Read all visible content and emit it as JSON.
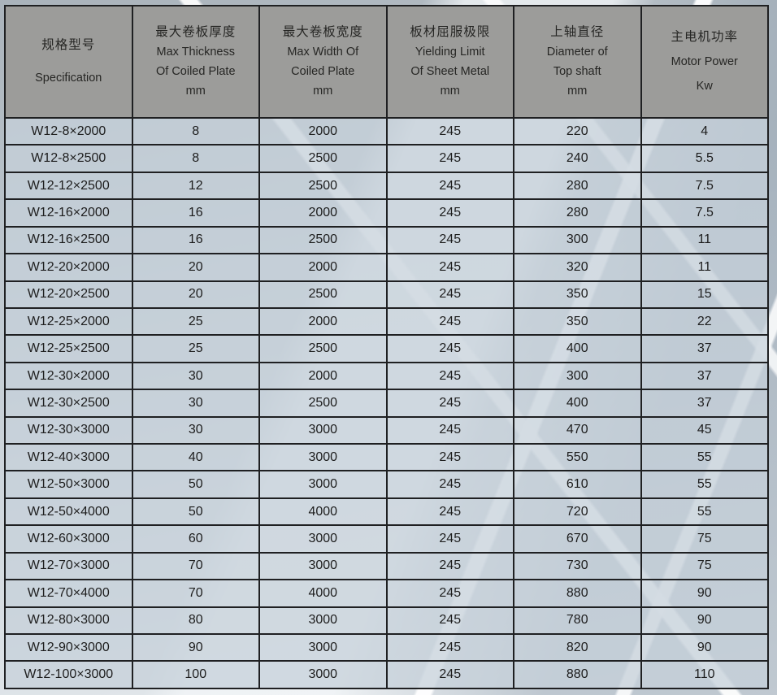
{
  "colors": {
    "header_bg": "#9c9c9a",
    "header_text": "#262624",
    "cell_bg": "rgba(198,208,217,0.75)",
    "border": "#1f2022",
    "text": "#1d1d1d",
    "background_base": "#c3ccd3",
    "streak": "#ffffff"
  },
  "table": {
    "columns": [
      {
        "key": "specification",
        "lines": [
          "规格型号",
          "Specification"
        ]
      },
      {
        "key": "max-thickness",
        "lines": [
          "最大卷板厚度",
          "Max Thickness",
          "Of Coiled Plate",
          "mm"
        ]
      },
      {
        "key": "max-width",
        "lines": [
          "最大卷板宽度",
          "Max Width Of",
          "Coiled Plate",
          "mm"
        ]
      },
      {
        "key": "yielding-limit",
        "lines": [
          "板材屈服极限",
          "Yielding Limit",
          "Of Sheet Metal",
          "mm"
        ]
      },
      {
        "key": "top-shaft-diameter",
        "lines": [
          "上轴直径",
          "Diameter of",
          "Top shaft",
          "mm"
        ]
      },
      {
        "key": "motor-power",
        "lines": [
          "主电机功率",
          "Motor Power",
          "Kw"
        ]
      }
    ],
    "rows": [
      [
        "W12-8×2000",
        "8",
        "2000",
        "245",
        "220",
        "4"
      ],
      [
        "W12-8×2500",
        "8",
        "2500",
        "245",
        "240",
        "5.5"
      ],
      [
        "W12-12×2500",
        "12",
        "2500",
        "245",
        "280",
        "7.5"
      ],
      [
        "W12-16×2000",
        "16",
        "2000",
        "245",
        "280",
        "7.5"
      ],
      [
        "W12-16×2500",
        "16",
        "2500",
        "245",
        "300",
        "11"
      ],
      [
        "W12-20×2000",
        "20",
        "2000",
        "245",
        "320",
        "11"
      ],
      [
        "W12-20×2500",
        "20",
        "2500",
        "245",
        "350",
        "15"
      ],
      [
        "W12-25×2000",
        "25",
        "2000",
        "245",
        "350",
        "22"
      ],
      [
        "W12-25×2500",
        "25",
        "2500",
        "245",
        "400",
        "37"
      ],
      [
        "W12-30×2000",
        "30",
        "2000",
        "245",
        "300",
        "37"
      ],
      [
        "W12-30×2500",
        "30",
        "2500",
        "245",
        "400",
        "37"
      ],
      [
        "W12-30×3000",
        "30",
        "3000",
        "245",
        "470",
        "45"
      ],
      [
        "W12-40×3000",
        "40",
        "3000",
        "245",
        "550",
        "55"
      ],
      [
        "W12-50×3000",
        "50",
        "3000",
        "245",
        "610",
        "55"
      ],
      [
        "W12-50×4000",
        "50",
        "4000",
        "245",
        "720",
        "55"
      ],
      [
        "W12-60×3000",
        "60",
        "3000",
        "245",
        "670",
        "75"
      ],
      [
        "W12-70×3000",
        "70",
        "3000",
        "245",
        "730",
        "75"
      ],
      [
        "W12-70×4000",
        "70",
        "4000",
        "245",
        "880",
        "90"
      ],
      [
        "W12-80×3000",
        "80",
        "3000",
        "245",
        "780",
        "90"
      ],
      [
        "W12-90×3000",
        "90",
        "3000",
        "245",
        "820",
        "90"
      ],
      [
        "W12-100×3000",
        "100",
        "3000",
        "245",
        "880",
        "110"
      ]
    ]
  }
}
